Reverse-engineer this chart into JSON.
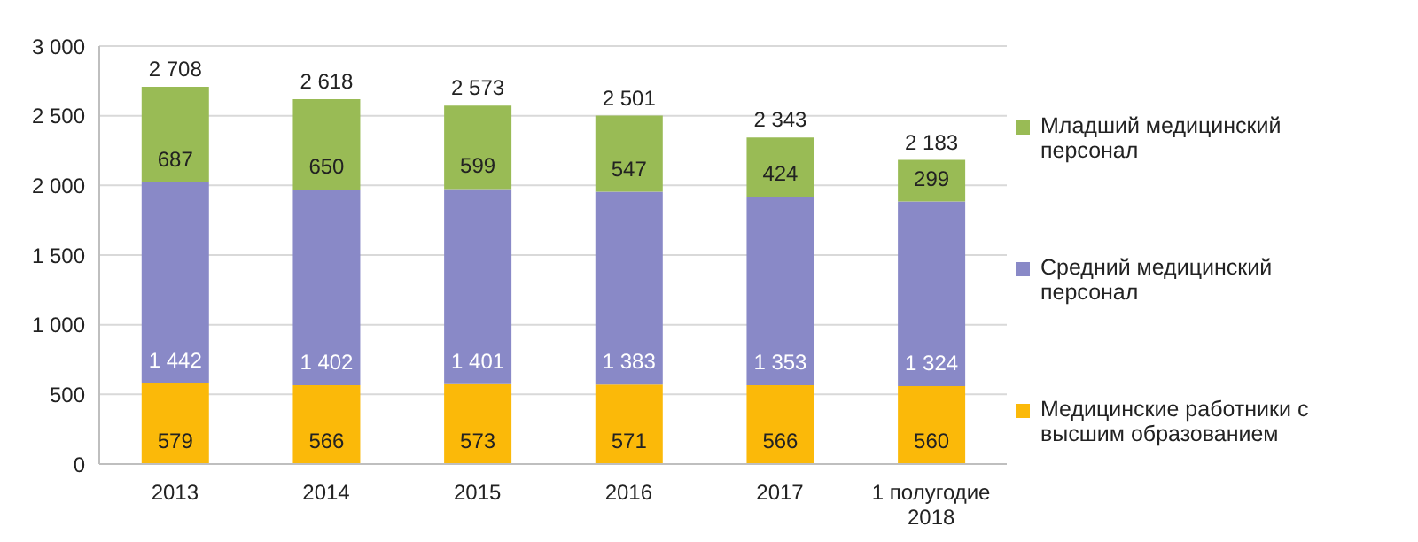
{
  "chart_data": {
    "type": "bar",
    "stacked": true,
    "categories": [
      "2013",
      "2014",
      "2015",
      "2016",
      "2017",
      "1 полугодие 2018"
    ],
    "series": [
      {
        "name": "Медицинские работники с высшим образованием",
        "color": "#fbb909",
        "values": [
          579,
          566,
          573,
          571,
          566,
          560
        ],
        "value_labels": [
          "579",
          "566",
          "573",
          "571",
          "566",
          "560"
        ]
      },
      {
        "name": "Средний медицинский персонал",
        "color": "#8989c7",
        "values": [
          1442,
          1402,
          1401,
          1383,
          1353,
          1324
        ],
        "value_labels": [
          "1 442",
          "1 402",
          "1 401",
          "1 383",
          "1 353",
          "1 324"
        ]
      },
      {
        "name": "Младший медицинский персонал",
        "color": "#99bb55",
        "values": [
          687,
          650,
          599,
          547,
          424,
          299
        ],
        "value_labels": [
          "687",
          "650",
          "599",
          "547",
          "424",
          "299"
        ]
      }
    ],
    "totals": [
      "2 708",
      "2 618",
      "2 573",
      "2 501",
      "2 343",
      "2 183"
    ],
    "ylim": [
      0,
      3000
    ],
    "yticks": [
      0,
      500,
      {
        "value": 1000,
        "label": "1 000"
      },
      {
        "value": 1500,
        "label": "1 500"
      },
      {
        "value": 2000,
        "label": "2 000"
      },
      {
        "value": 2500,
        "label": "2 500"
      },
      {
        "value": 3000,
        "label": "3 000"
      }
    ],
    "grid": "y",
    "legend": "right"
  }
}
